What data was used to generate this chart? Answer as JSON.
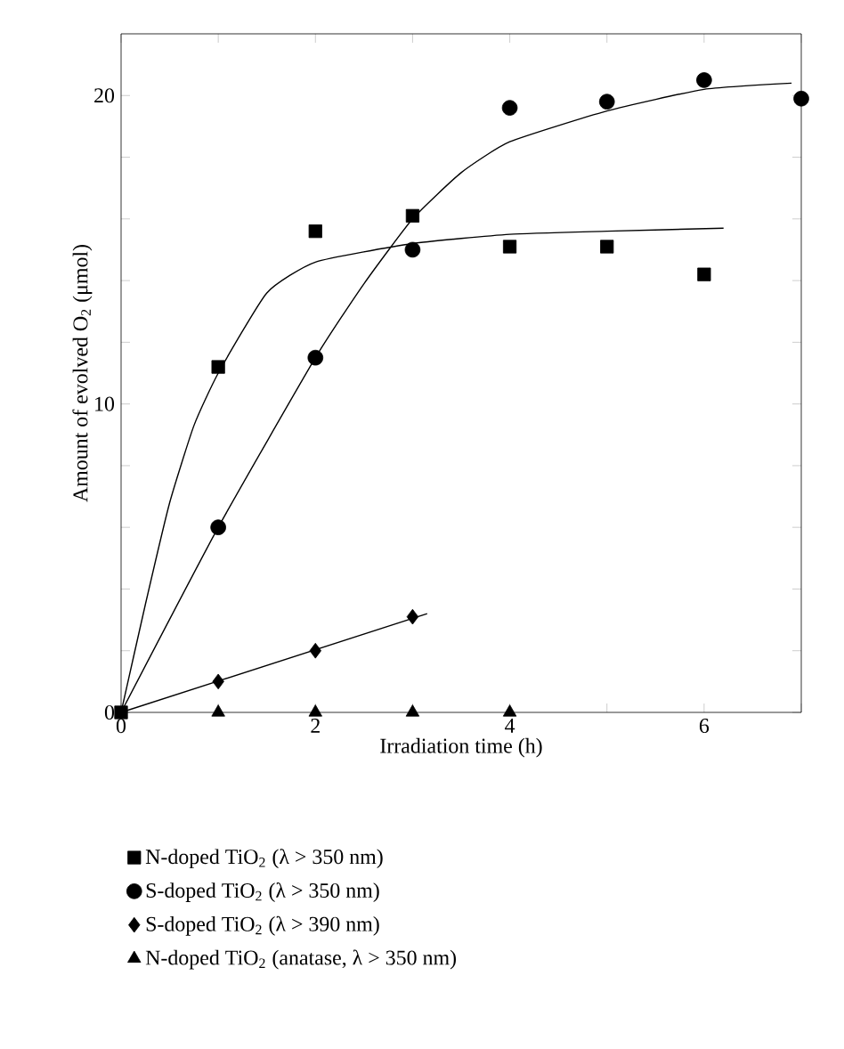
{
  "chart_data": {
    "type": "scatter",
    "xlabel": "Irradiation time (h)",
    "ylabel": "Amount of evolved O$_{2}$ (μmol)",
    "xlim": [
      0,
      7
    ],
    "ylim": [
      0,
      22
    ],
    "xticks": [
      0,
      {
        "value": 1,
        "label": null
      },
      2,
      {
        "value": 3,
        "label": null
      },
      4,
      {
        "value": 5,
        "label": null
      },
      6,
      {
        "value": 7,
        "label": null
      }
    ],
    "yticks": [
      0,
      {
        "value": 2,
        "label": null
      },
      {
        "value": 4,
        "label": null
      },
      {
        "value": 6,
        "label": null
      },
      {
        "value": 8,
        "label": null
      },
      10,
      {
        "value": 12,
        "label": null
      },
      {
        "value": 14,
        "label": null
      },
      {
        "value": 16,
        "label": null
      },
      {
        "value": 18,
        "label": null
      },
      20
    ],
    "grid": false,
    "legend": "bottom",
    "series": [
      {
        "name": "N-doped TiO$_{2}$ (λ > 350 nm)",
        "marker": "square",
        "color": "#000000",
        "x": [
          0,
          1,
          2,
          3,
          4,
          5,
          6
        ],
        "values": [
          0,
          11.2,
          15.6,
          16.1,
          15.1,
          15.1,
          14.2
        ]
      },
      {
        "name": "S-doped TiO$_{2}$ (λ > 350 nm)",
        "marker": "circle",
        "color": "#000000",
        "x": [
          1,
          2,
          3,
          4,
          5,
          6,
          7
        ],
        "values": [
          6.0,
          11.5,
          15.0,
          19.6,
          19.8,
          20.5,
          19.9
        ]
      },
      {
        "name": "S-doped TiO$_{2}$ (λ > 390 nm)",
        "marker": "diamond",
        "color": "#000000",
        "x": [
          1,
          2,
          3
        ],
        "values": [
          1.0,
          2.0,
          3.1
        ]
      },
      {
        "name": "N-doped TiO$_{2}$ (anatase, λ > 350 nm)",
        "marker": "triangle",
        "color": "#000000",
        "x": [
          1,
          2,
          3,
          4
        ],
        "values": [
          0,
          0,
          0,
          0
        ]
      },
      {
        "type": "line",
        "marker": "none",
        "line_style": "solid",
        "color": "#000000",
        "x": [
          0,
          0.25,
          0.5,
          0.75,
          1,
          1.5,
          2,
          3,
          4,
          5,
          6.2
        ],
        "values": [
          0,
          3.5,
          6.8,
          9.3,
          11.0,
          13.6,
          14.6,
          15.2,
          15.5,
          15.6,
          15.7
        ]
      },
      {
        "type": "line",
        "marker": "none",
        "line_style": "solid",
        "color": "#000000",
        "x": [
          0,
          1,
          2,
          2.5,
          3,
          3.5,
          4,
          5,
          6,
          6.9
        ],
        "values": [
          0,
          6.0,
          11.5,
          13.9,
          16.0,
          17.5,
          18.5,
          19.5,
          20.2,
          20.4
        ]
      },
      {
        "type": "line",
        "marker": "none",
        "line_style": "solid",
        "color": "#000000",
        "x": [
          0,
          3.15
        ],
        "values": [
          0,
          3.2
        ]
      }
    ]
  }
}
